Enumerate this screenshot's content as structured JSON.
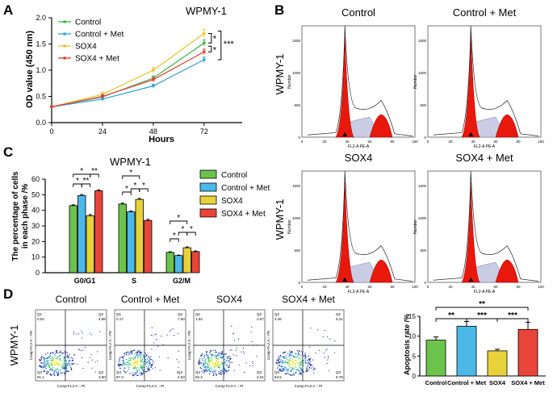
{
  "panel_labels": {
    "a": "A",
    "b": "B",
    "c": "C",
    "d": "D"
  },
  "chart_data": [
    {
      "panel": "A",
      "type": "line",
      "title": "WPMY-1",
      "xlabel": "Hours",
      "ylabel": "OD value (450 nm)",
      "x": [
        0,
        24,
        48,
        72
      ],
      "xticks": [
        "0",
        "24",
        "48",
        "72"
      ],
      "yticks": [
        "0.0",
        "0.5",
        "1.0",
        "1.5",
        "2.0"
      ],
      "xlim": [
        0,
        90
      ],
      "ylim": [
        0,
        2.0
      ],
      "series": [
        {
          "name": "Control",
          "color": "#3db34a",
          "values": [
            0.3,
            0.49,
            0.85,
            1.52
          ],
          "errors": [
            0.02,
            0.03,
            0.04,
            0.06
          ]
        },
        {
          "name": "Control + Met",
          "color": "#2fa3d9",
          "values": [
            0.3,
            0.45,
            0.7,
            1.2
          ],
          "errors": [
            0.02,
            0.03,
            0.03,
            0.05
          ]
        },
        {
          "name": "SOX4",
          "color": "#e6c22e",
          "values": [
            0.3,
            0.54,
            1.0,
            1.7
          ],
          "errors": [
            0.02,
            0.04,
            0.05,
            0.08
          ]
        },
        {
          "name": "SOX4 + Met",
          "color": "#e53b2f",
          "values": [
            0.3,
            0.5,
            0.82,
            1.35
          ],
          "errors": [
            0.02,
            0.03,
            0.04,
            0.05
          ]
        }
      ],
      "significance": [
        {
          "label": "*",
          "between": [
            "SOX4",
            "Control"
          ]
        },
        {
          "label": "*",
          "between": [
            "Control",
            "SOX4 + Met"
          ]
        },
        {
          "label": "***",
          "between": [
            "SOX4",
            "Control + Met"
          ]
        }
      ]
    },
    {
      "panel": "C",
      "type": "bar",
      "title": "WPMY-1",
      "ylabel": "The percentage of cells in each phase /%",
      "ylabel_lines": [
        "The percentage of cells",
        "in each phase /%"
      ],
      "categories": [
        "G0/G1",
        "S",
        "G2/M"
      ],
      "yticks": [
        "0",
        "10",
        "20",
        "30",
        "40",
        "50",
        "60"
      ],
      "ylim": [
        0,
        60
      ],
      "series": [
        {
          "name": "Control",
          "color": "#6cc24a",
          "values": [
            43,
            44,
            13
          ],
          "errors": [
            0.5,
            0.6,
            0.4
          ]
        },
        {
          "name": "Control + Met",
          "color": "#4bb8e8",
          "values": [
            49.5,
            39,
            11
          ],
          "errors": [
            0.6,
            0.5,
            0.3
          ]
        },
        {
          "name": "SOX4",
          "color": "#e8d23a",
          "values": [
            36.5,
            47,
            16
          ],
          "errors": [
            0.8,
            0.6,
            0.5
          ]
        },
        {
          "name": "SOX4 + Met",
          "color": "#e8453a",
          "values": [
            52.5,
            33.5,
            13.5
          ],
          "errors": [
            0.6,
            0.7,
            0.4
          ]
        }
      ],
      "significance": [
        "*",
        "*",
        "**",
        "**",
        "*",
        "*",
        "*",
        "*",
        "*",
        "*",
        "*",
        "*"
      ]
    },
    {
      "panel": "D",
      "type": "bar",
      "ylabel": "Apoptosis rate /%",
      "categories": [
        "Control",
        "Control + Met",
        "SOX4",
        "SOX4 + Met"
      ],
      "values": [
        9,
        12.5,
        6.3,
        11.7
      ],
      "errors": [
        0.8,
        1.2,
        0.4,
        1.8
      ],
      "colors": [
        "#6cc24a",
        "#4bb8e8",
        "#e8d23a",
        "#e8453a"
      ],
      "yticks": [
        "0",
        "5",
        "10",
        "15"
      ],
      "ylim": [
        0,
        15
      ],
      "significance": [
        {
          "label": "**",
          "between": [
            "Control",
            "SOX4 + Met"
          ]
        },
        {
          "label": "**",
          "between": [
            "Control",
            "Control + Met"
          ]
        },
        {
          "label": "***",
          "between": [
            "Control + Met",
            "SOX4"
          ]
        },
        {
          "label": "***",
          "between": [
            "SOX4",
            "SOX4 + Met"
          ]
        }
      ]
    }
  ],
  "panel_b": {
    "row_label": "WPMY-1",
    "plots": [
      {
        "title": "Control",
        "ylabel": "Number",
        "xlabel": "FL2-A PE-A",
        "ymax_tick": "1500"
      },
      {
        "title": "Control + Met",
        "ylabel": "Number",
        "xlabel": "FL2-A PE-A",
        "ymax_tick": "1500"
      },
      {
        "title": "SOX4",
        "ylabel": "Number",
        "xlabel": "FL2-A PE-A",
        "ymax_tick": "1500"
      },
      {
        "title": "SOX4 + Met",
        "ylabel": "Number",
        "xlabel": "FL2-A PE-A",
        "ymax_tick": "1500"
      }
    ],
    "xticks": [
      "0",
      "20",
      "40",
      "60",
      "80",
      "100"
    ],
    "yticks": [
      "0",
      "500",
      "1000",
      "1500"
    ]
  },
  "panel_d_flow": {
    "row_label": "WPMY-1",
    "xlabel": "Comp-FL3-A :: PI",
    "ylabel": "Comp-FL2-A :: PE",
    "plots": [
      {
        "title": "Control",
        "q1": "Q1",
        "q1v": "0.04",
        "q2": "Q2",
        "q2v": "4.89",
        "q3": "Q3",
        "q3v": "3.90",
        "q4": "Q4",
        "q4v": "91.1"
      },
      {
        "title": "Control + Met",
        "q1": "Q1",
        "q1v": "0.17",
        "q2": "Q2",
        "q2v": "7.90",
        "q3": "Q3",
        "q3v": "4.63",
        "q4": "Q4",
        "q4v": "87.3"
      },
      {
        "title": "SOX4",
        "q1": "Q1",
        "q1v": "1.02",
        "q2": "Q2",
        "q2v": "2.67",
        "q3": "Q3",
        "q3v": "4.01",
        "q4": "Q4",
        "q4v": "92.3"
      },
      {
        "title": "SOX4 + Met",
        "q1": "Q1",
        "q1v": "4.46",
        "q2": "Q2",
        "q2v": "5.21",
        "q3": "Q3",
        "q3v": "5.79",
        "q4": "Q4",
        "q4v": "84.5"
      }
    ]
  }
}
